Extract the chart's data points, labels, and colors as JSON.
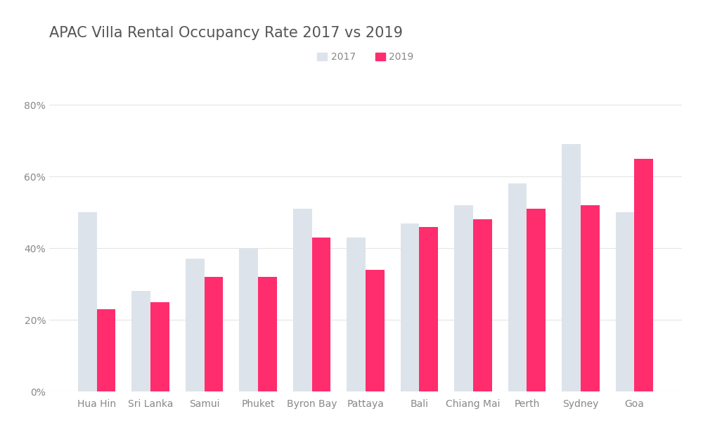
{
  "title": "APAC Villa Rental Occupancy Rate 2017 vs 2019",
  "categories": [
    "Hua Hin",
    "Sri Lanka",
    "Samui",
    "Phuket",
    "Byron Bay",
    "Pattaya",
    "Bali",
    "Chiang Mai",
    "Perth",
    "Sydney",
    "Goa"
  ],
  "values_2017": [
    0.5,
    0.28,
    0.37,
    0.4,
    0.51,
    0.43,
    0.47,
    0.52,
    0.58,
    0.69,
    0.5
  ],
  "values_2019": [
    0.23,
    0.25,
    0.32,
    0.32,
    0.43,
    0.34,
    0.46,
    0.48,
    0.51,
    0.52,
    0.65
  ],
  "color_2017": "#dde3ea",
  "color_2019": "#ff2d6e",
  "legend_2017": "2017",
  "legend_2019": "2019",
  "background_color": "#ffffff",
  "yticks": [
    0.0,
    0.2,
    0.4,
    0.6,
    0.8
  ],
  "ytick_labels": [
    "0%",
    "20%",
    "40%",
    "60%",
    "80%"
  ],
  "ylim": [
    0,
    0.85
  ],
  "bar_width": 0.35,
  "title_fontsize": 15,
  "tick_fontsize": 10,
  "legend_fontsize": 10,
  "grid_color": "#e5e5e5",
  "title_color": "#555555",
  "tick_color": "#888888"
}
